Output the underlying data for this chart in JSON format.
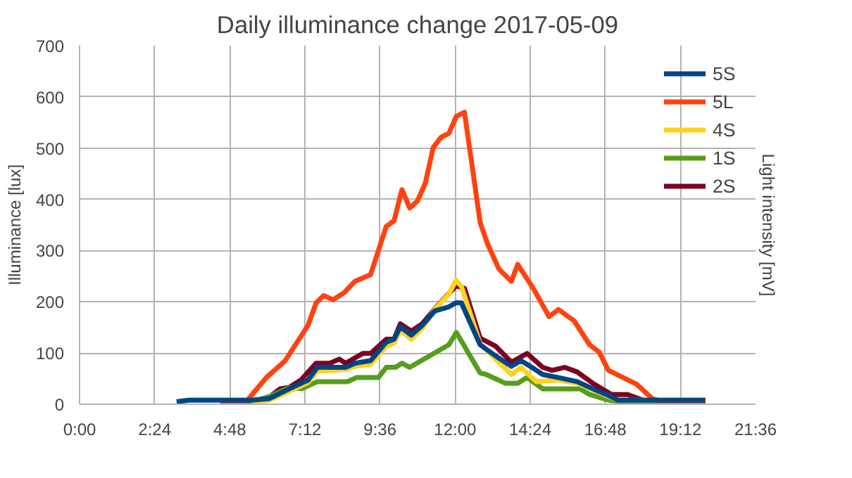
{
  "chart_data": {
    "type": "line",
    "title": "Daily illuminance change 2017-05-09",
    "ylabel": "Illuminance [lux]",
    "y2label": "Light intensity [mV]",
    "xlim": [
      0,
      21.6
    ],
    "xticks": [
      {
        "value": 0,
        "label": "0:00"
      },
      {
        "value": 2.4,
        "label": "2:24"
      },
      {
        "value": 4.8,
        "label": "4:48"
      },
      {
        "value": 7.2,
        "label": "7:12"
      },
      {
        "value": 9.6,
        "label": "9:36"
      },
      {
        "value": 12,
        "label": "12:00"
      },
      {
        "value": 14.4,
        "label": "14:24"
      },
      {
        "value": 16.8,
        "label": "16:48"
      },
      {
        "value": 19.2,
        "label": "19:12"
      },
      {
        "value": 21.6,
        "label": "21:36"
      }
    ],
    "ylim": [
      0,
      700
    ],
    "yticks": [
      0,
      100,
      200,
      300,
      400,
      500,
      600,
      700
    ],
    "grid": true,
    "legend": "top right",
    "line_style": "solid",
    "series": [
      {
        "name": "5S",
        "color": "#004586",
        "x": [
          3.1,
          3.5,
          4.5,
          5.5,
          6.07,
          6.7,
          7.3,
          7.6,
          8.05,
          8.5,
          8.8,
          9.3,
          9.8,
          10.05,
          10.25,
          10.6,
          10.95,
          11.35,
          11.8,
          12.03,
          12.2,
          12.8,
          13.3,
          13.8,
          14.1,
          14.4,
          14.8,
          15.3,
          15.9,
          16.4,
          16.9,
          17.2,
          18.5,
          20.0
        ],
        "values": [
          5,
          8,
          8,
          8,
          11,
          30,
          47,
          72,
          72,
          72,
          80,
          85,
          121,
          127,
          151,
          135,
          154,
          182,
          190,
          198,
          198,
          116,
          94,
          74,
          85,
          74,
          58,
          52,
          44,
          30,
          17,
          8,
          8,
          8
        ]
      },
      {
        "name": "5L",
        "color": "#ff420e",
        "x": [
          4.5,
          5.3,
          5.97,
          6.57,
          7.3,
          7.56,
          7.8,
          8.1,
          8.46,
          8.8,
          9.3,
          9.8,
          10.05,
          10.3,
          10.55,
          10.8,
          11.05,
          11.3,
          11.55,
          11.8,
          12.04,
          12.3,
          12.8,
          13.03,
          13.4,
          13.8,
          14.0,
          14.5,
          15.0,
          15.3,
          15.8,
          16.3,
          16.6,
          16.9,
          17.8,
          18.3,
          18.8,
          20.0
        ],
        "values": [
          0,
          3,
          52,
          85,
          154,
          198,
          212,
          204,
          218,
          240,
          253,
          347,
          358,
          419,
          383,
          397,
          432,
          501,
          521,
          529,
          562,
          570,
          355,
          314,
          264,
          240,
          273,
          226,
          171,
          185,
          163,
          116,
          102,
          66,
          39,
          11,
          2,
          0
        ]
      },
      {
        "name": "4S",
        "color": "#ffd320",
        "x": [
          5.5,
          6.07,
          6.7,
          7.3,
          7.6,
          8.05,
          8.5,
          8.8,
          9.3,
          9.8,
          10.05,
          10.25,
          10.6,
          10.95,
          11.35,
          11.8,
          12.03,
          12.2,
          12.8,
          13.3,
          13.8,
          14.1,
          14.6,
          15.3,
          15.9,
          16.4,
          16.9,
          17.2,
          18.5,
          20.0
        ],
        "values": [
          5,
          8,
          25,
          42,
          65,
          66,
          68,
          74,
          78,
          113,
          119,
          145,
          127,
          148,
          185,
          215,
          242,
          230,
          118,
          88,
          58,
          72,
          44,
          47,
          41,
          28,
          15,
          8,
          8,
          8
        ]
      },
      {
        "name": "1S",
        "color": "#579d1c",
        "x": [
          5.3,
          6.1,
          6.7,
          7.1,
          7.6,
          8.56,
          8.85,
          9.55,
          9.8,
          10.1,
          10.3,
          10.55,
          11.8,
          12.04,
          12.8,
          13.0,
          13.6,
          14.0,
          14.3,
          14.8,
          16.0,
          16.3,
          16.9,
          18.1,
          20.0
        ],
        "values": [
          0,
          16,
          33,
          30,
          44,
          44,
          52,
          52,
          72,
          72,
          80,
          72,
          116,
          140,
          61,
          58,
          41,
          41,
          52,
          30,
          30,
          19,
          8,
          0,
          0
        ]
      },
      {
        "name": "2S",
        "color": "#7e0021",
        "x": [
          5.5,
          6.07,
          6.4,
          6.7,
          7.07,
          7.56,
          8.0,
          8.3,
          8.5,
          9.05,
          9.3,
          9.8,
          10.05,
          10.25,
          10.6,
          10.95,
          11.45,
          12.03,
          12.3,
          12.8,
          13.3,
          13.8,
          14.3,
          14.8,
          15.1,
          15.5,
          15.9,
          16.4,
          17.0,
          17.5,
          18.0,
          20.0
        ],
        "values": [
          5,
          14,
          30,
          33,
          47,
          80,
          80,
          88,
          80,
          99,
          99,
          127,
          127,
          157,
          143,
          157,
          193,
          231,
          226,
          129,
          113,
          82,
          99,
          72,
          66,
          72,
          63,
          41,
          19,
          19,
          8,
          5
        ]
      }
    ]
  }
}
